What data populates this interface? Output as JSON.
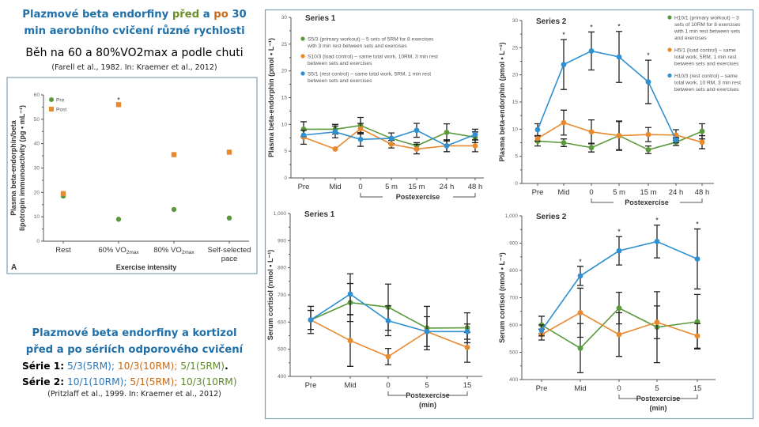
{
  "left_panel": {
    "title_line1_part1": "Plazmové beta endorfiny ",
    "title_line1_pred": "před",
    "title_line1_a": " a ",
    "title_line1_po": "po",
    "title_line1_part2": " 30",
    "title_line2": "min aerobního cvičení různé rychlosti",
    "subtitle": "Běh na 60 a 80%VO2max a podle chuti",
    "citation": "(Farell et al., 1982. In: Kraemer et al., 2012)",
    "lower_title_line1": "Plazmové beta endorfiny a kortizol",
    "lower_title_line2": "před a po sériích odporového cvičení",
    "serie1_label": "Série 1:",
    "serie1_items": [
      "5/3(5RM)",
      "; ",
      "10/3(10RM)",
      "; ",
      "5/1(5RM)",
      "."
    ],
    "serie2_label": "Série 2:",
    "serie2_items": [
      "10/1(10RM)",
      "; ",
      "5/1(5RM)",
      "; ",
      "10/3(10RM)"
    ],
    "lower_citation": "(Pritzlaff et al., 1999. In: Kraemer et al., 2012)"
  },
  "colors": {
    "green": "#5b9a3c",
    "orange": "#e8892e",
    "blue": "#2f8fd0",
    "title_blue": "#1f6fa8"
  },
  "chart_data": [
    {
      "id": "farell",
      "type": "scatter",
      "title": "",
      "panel_letter": "A",
      "xlabel": "Exercise intensity",
      "ylabel_line1": "Plasma beta-endorphin/beta",
      "ylabel_line2": "lipotropin immunoactivity (pg • mL⁻¹)",
      "ylim": [
        0,
        60
      ],
      "yticks": [
        0,
        10,
        20,
        30,
        40,
        50,
        60
      ],
      "categories": [
        "Rest",
        "60% VO2max",
        "80% VO2max",
        "Self-selected pace"
      ],
      "category_labels": [
        [
          "Rest"
        ],
        [
          "60% VO",
          "2max"
        ],
        [
          "80% VO",
          "2max"
        ],
        [
          "Self-selected",
          "pace"
        ]
      ],
      "legend": [
        "Pre",
        "Post"
      ],
      "legend_position": "top-left",
      "series": [
        {
          "name": "Pre",
          "color": "#5b9a3c",
          "marker": "circle",
          "values": [
            18.5,
            9,
            13,
            9.5
          ]
        },
        {
          "name": "Post",
          "color": "#e8892e",
          "marker": "square",
          "values": [
            19.5,
            56,
            35.5,
            36.5
          ]
        }
      ],
      "significance": [
        "",
        "*",
        "",
        ""
      ]
    },
    {
      "id": "s1-endorphin",
      "type": "line",
      "title": "Series 1",
      "ylabel": "Plasma beta-endorphin (pmol • L⁻¹)",
      "ylim": [
        0,
        30
      ],
      "yticks": [
        0,
        5,
        10,
        15,
        20,
        25,
        30
      ],
      "categories": [
        "Pre",
        "Mid",
        "0",
        "5 m",
        "15 m",
        "24 h",
        "48 h"
      ],
      "xgroup_label": "Postexercise",
      "legend_position": "top",
      "series": [
        {
          "name": "S5/3 (primary workout) – 5 sets of 5RM for 8 exercises with 3 min rest between sets and exercises",
          "legend_lines": [
            "S5/3 (primary workout) – 5 sets of 5RM for 8 exercises",
            "with 3 min rest between sets and exercises"
          ],
          "color": "#5b9a3c",
          "values": [
            9.1,
            9.1,
            9.8,
            7.4,
            6.0,
            8.5,
            7.6
          ],
          "err": [
            1.4,
            0.9,
            1.5,
            1.0,
            0.6,
            1.6,
            1.0
          ]
        },
        {
          "name": "S10/3 (load control) – same total work, 10RM, 3 min rest between sets and exercises",
          "legend_lines": [
            "S10/3 (load control) – same total work, 10RM, 3 min rest",
            "between sets and exercises"
          ],
          "color": "#e8892e",
          "values": [
            7.6,
            5.4,
            9.2,
            6.3,
            5.4,
            6.0,
            6.0
          ],
          "err": [
            1.3,
            0,
            1.0,
            0.7,
            0.9,
            1.1,
            1.1
          ]
        },
        {
          "name": "S5/1 (rest control) – same total work, 5RM, 1 min rest between sets and exercises",
          "legend_lines": [
            "S5/1 (rest control) – same total work, 5RM, 1 min rest",
            "between sets and exercises"
          ],
          "color": "#2f8fd0",
          "values": [
            8.0,
            8.6,
            7.2,
            7.4,
            8.9,
            6.0,
            8.1
          ],
          "err": [
            0,
            1.1,
            1.3,
            0,
            1.3,
            1.1,
            1.0
          ]
        }
      ],
      "significance": []
    },
    {
      "id": "s2-endorphin",
      "type": "line",
      "title": "Series 2",
      "ylabel": "Plasma beta-endorphin (pmol • L⁻¹)",
      "ylim": [
        0,
        30
      ],
      "yticks": [
        0,
        5,
        10,
        15,
        20,
        25,
        30
      ],
      "categories": [
        "Pre",
        "Mid",
        "0",
        "5 m",
        "15 m",
        "24 h",
        "48 h"
      ],
      "xgroup_label": "Postexercise",
      "legend_position": "top-right",
      "series": [
        {
          "name": "H10/1 (primary workout) – 3 sets of 10RM for 8 exercises with 1 min rest between sets and exercises",
          "legend_lines": [
            "H10/1 (primary workout) – 3",
            "sets of 10RM for 8 exercises",
            "with 1 min rest between sets",
            "and exercises"
          ],
          "color": "#5b9a3c",
          "values": [
            7.8,
            7.5,
            6.6,
            8.8,
            6.2,
            7.6,
            9.6
          ],
          "err": [
            0.9,
            0.7,
            0.8,
            2.7,
            0.7,
            0.6,
            1.4
          ]
        },
        {
          "name": "H5/1 (load control) – same total work, 5RM, 1 min rest between sets and exercises",
          "legend_lines": [
            "H5/1 (load control) – same",
            "total work, 5RM, 1 min rest",
            "between sets and exercises"
          ],
          "color": "#e8892e",
          "values": [
            8.3,
            11.2,
            9.5,
            8.8,
            9.0,
            8.9,
            7.6
          ],
          "err": [
            0.5,
            2.3,
            2.2,
            2.6,
            1.3,
            1.0,
            1.2
          ]
        },
        {
          "name": "H10/3 (rest control) – same total work, 10 RM, 3 min rest between sets and exercises",
          "legend_lines": [
            "H10/3 (rest control) – same",
            "total work, 10 RM, 3 min rest",
            "between sets and exercises"
          ],
          "color": "#2f8fd0",
          "values": [
            9.9,
            21.9,
            24.4,
            23.3,
            18.7,
            8.0,
            null
          ],
          "err": [
            1.1,
            4.6,
            3.5,
            4.7,
            4.0,
            0.5,
            null
          ]
        }
      ],
      "significance": [
        "",
        "*",
        "*",
        "*",
        "*",
        "",
        ""
      ]
    },
    {
      "id": "s1-cortisol",
      "type": "line",
      "title": "Series 1",
      "ylabel": "Serum cortisol (nmol • L⁻¹)",
      "ylim": [
        400,
        1000
      ],
      "yticks": [
        400,
        500,
        600,
        700,
        800,
        900,
        1000
      ],
      "ytick_labels": [
        "400",
        "500",
        "600",
        "700",
        "800",
        "900",
        "1,000"
      ],
      "categories": [
        "Pre",
        "Mid",
        "0",
        "5",
        "15"
      ],
      "xgroup_label": "Postexercise",
      "xgroup_sublabel": "(min)",
      "series": [
        {
          "name": "S5/3",
          "color": "#5b9a3c",
          "values": [
            608,
            672,
            655,
            578,
            579
          ],
          "err": [
            50,
            70,
            85,
            80,
            55
          ]
        },
        {
          "name": "S10/3",
          "color": "#e8892e",
          "values": [
            608,
            532,
            473,
            565,
            507
          ],
          "err": [
            0,
            95,
            30,
            0,
            55
          ]
        },
        {
          "name": "S5/1",
          "color": "#2f8fd0",
          "values": [
            608,
            703,
            605,
            565,
            565
          ],
          "err": [
            35,
            75,
            55,
            55,
            28
          ]
        }
      ],
      "significance": []
    },
    {
      "id": "s2-cortisol",
      "type": "line",
      "title": "Series 2",
      "ylabel": "Serum cortisol (nmol • L⁻¹)",
      "ylim": [
        400,
        1000
      ],
      "yticks": [
        400,
        500,
        600,
        700,
        800,
        900,
        1000
      ],
      "ytick_labels": [
        "400",
        "500",
        "600",
        "700",
        "800",
        "900",
        "1,000"
      ],
      "categories": [
        "Pre",
        "Mid",
        "0",
        "5",
        "15"
      ],
      "xgroup_label": "Postexercise",
      "xgroup_sublabel": "(min)",
      "series": [
        {
          "name": "H10/1",
          "color": "#5b9a3c",
          "values": [
            600,
            515,
            662,
            592,
            612
          ],
          "err": [
            32,
            90,
            58,
            130,
            100
          ]
        },
        {
          "name": "H5/1",
          "color": "#e8892e",
          "values": [
            565,
            645,
            565,
            610,
            560
          ],
          "err": [
            20,
            90,
            80,
            60,
            45
          ]
        },
        {
          "name": "H10/3",
          "color": "#2f8fd0",
          "values": [
            580,
            780,
            872,
            906,
            842
          ],
          "err": [
            20,
            35,
            52,
            60,
            110
          ]
        }
      ],
      "significance": [
        "",
        "*",
        "*",
        "*",
        "*"
      ]
    }
  ]
}
